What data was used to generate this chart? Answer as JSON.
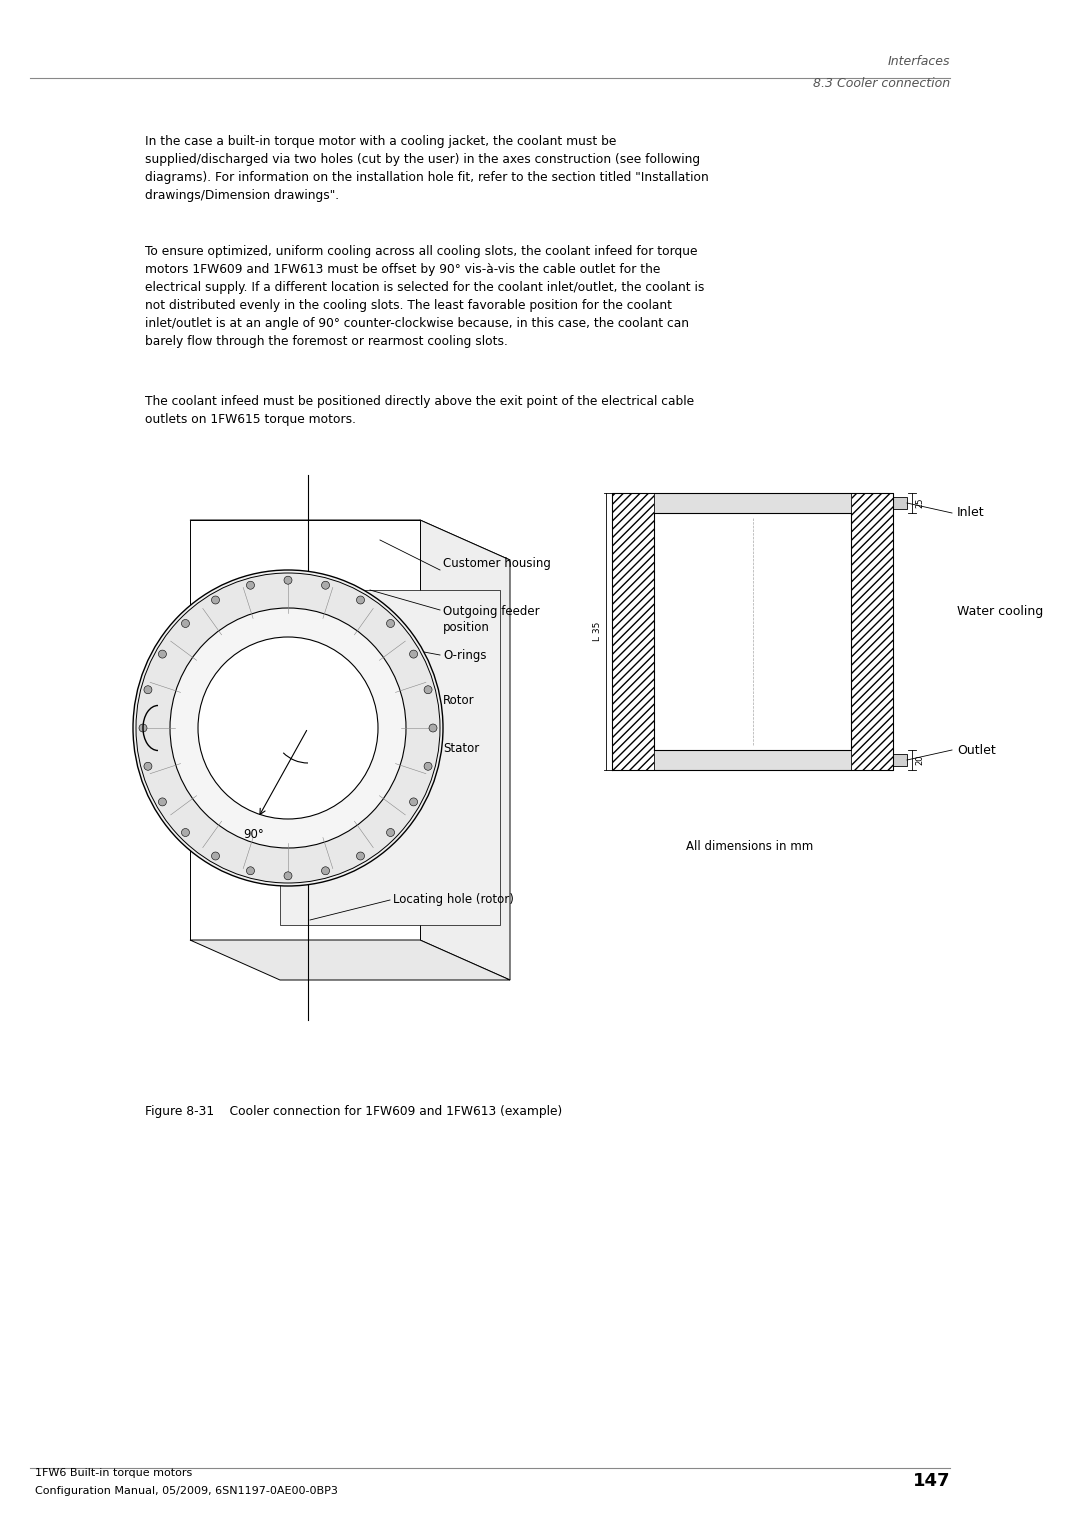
{
  "page_width": 10.8,
  "page_height": 15.27,
  "bg_color": "#ffffff",
  "header_italic1": "Interfaces",
  "header_italic2": "8.3 Cooler connection",
  "footer_line1": "1FW6 Built-in torque motors",
  "footer_line2": "Configuration Manual, 05/2009, 6SN1197-0AE00-0BP3",
  "footer_page": "147",
  "para1": "In the case a built-in torque motor with a cooling jacket, the coolant must be\nsupplied/discharged via two holes (cut by the user) in the axes construction (see following\ndiagrams). For information on the installation hole fit, refer to the section titled \"Installation\ndrawings/Dimension drawings\".",
  "para2": "To ensure optimized, uniform cooling across all cooling slots, the coolant infeed for torque\nmotors 1FW609 and 1FW613 must be offset by 90° vis-à-vis the cable outlet for the\nelectrical supply. If a different location is selected for the coolant inlet/outlet, the coolant is\nnot distributed evenly in the cooling slots. The least favorable position for the coolant\ninlet/outlet is at an angle of 90° counter-clockwise because, in this case, the coolant can\nbarely flow through the foremost or rearmost cooling slots.",
  "para3": "The coolant infeed must be positioned directly above the exit point of the electrical cable\noutlets on 1FW615 torque motors.",
  "figure_caption": "Figure 8-31    Cooler connection for 1FW609 and 1FW613 (example)",
  "lbl_customer_housing": "Customer housing",
  "lbl_outgoing_feeder": "Outgoing feeder\nposition",
  "lbl_o_rings": "O-rings",
  "lbl_rotor": "Rotor",
  "lbl_stator": "Stator",
  "lbl_locating_hole": "Locating hole (rotor)",
  "lbl_inlet": "Inlet",
  "lbl_water_cooling": "Water cooling",
  "lbl_outlet": "Outlet",
  "lbl_all_dimensions": "All dimensions in mm",
  "lbl_angle": "90°",
  "lbl_dim1": "25",
  "lbl_dim2": "20",
  "lbl_l35": "L 35",
  "text_color": "#000000",
  "line_color": "#000000"
}
